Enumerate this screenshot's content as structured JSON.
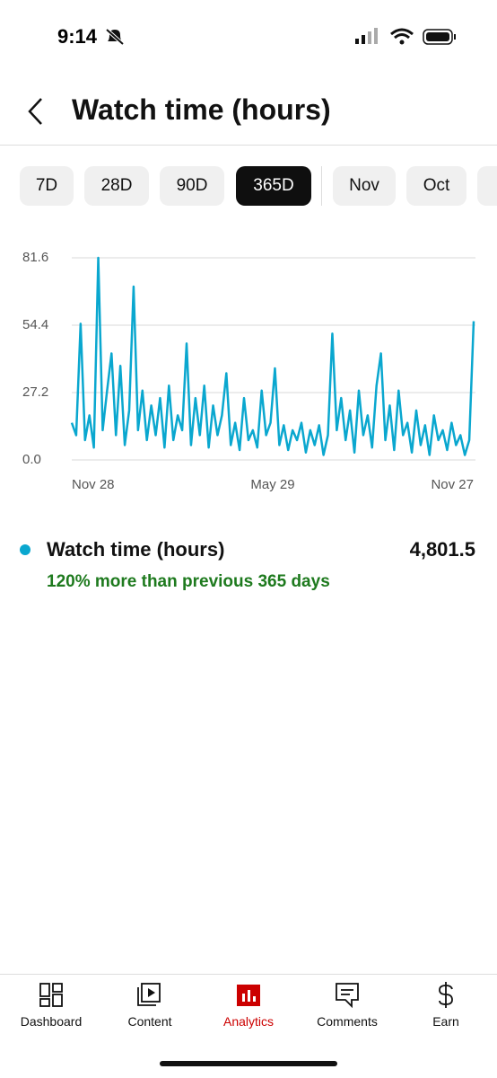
{
  "status_bar": {
    "time": "9:14"
  },
  "header": {
    "title": "Watch time (hours)"
  },
  "tabs": [
    {
      "label": "7D"
    },
    {
      "label": "28D"
    },
    {
      "label": "90D"
    },
    {
      "label": "365D",
      "selected": true
    },
    {
      "label": "Nov"
    },
    {
      "label": "Oct"
    }
  ],
  "chart_data": {
    "type": "line",
    "x": [
      0,
      4,
      8,
      12,
      16,
      20,
      24,
      28,
      32,
      36,
      40,
      44,
      48,
      52,
      56,
      60,
      64,
      68,
      72,
      76,
      80,
      84,
      88,
      92,
      96,
      100,
      104,
      108,
      112,
      116,
      120,
      124,
      128,
      132,
      136,
      140,
      144,
      148,
      152,
      156,
      160,
      164,
      168,
      172,
      176,
      180,
      184,
      188,
      192,
      196,
      200,
      204,
      208,
      212,
      216,
      220,
      224,
      228,
      232,
      236,
      240,
      244,
      248,
      252,
      256,
      260,
      264,
      268,
      272,
      276,
      280,
      284,
      288,
      292,
      296,
      300,
      304,
      308,
      312,
      316,
      320,
      324,
      328,
      332,
      336,
      340,
      344,
      348,
      352,
      356,
      360,
      364
    ],
    "series": [
      {
        "name": "Watch time (hours)",
        "color": "#0aa7cf",
        "values": [
          15,
          10,
          55,
          8,
          18,
          5,
          81.6,
          12,
          28,
          43,
          10,
          38,
          6,
          20,
          70,
          12,
          28,
          8,
          22,
          10,
          25,
          5,
          30,
          8,
          18,
          12,
          47,
          6,
          25,
          10,
          30,
          5,
          22,
          10,
          18,
          35,
          6,
          15,
          4,
          25,
          8,
          12,
          5,
          28,
          10,
          15,
          37,
          6,
          14,
          4,
          12,
          8,
          15,
          3,
          12,
          6,
          14,
          2,
          10,
          51,
          12,
          25,
          8,
          20,
          3,
          28,
          10,
          18,
          5,
          30,
          43,
          8,
          22,
          4,
          28,
          10,
          15,
          3,
          20,
          6,
          14,
          2,
          18,
          8,
          12,
          4,
          15,
          6,
          10,
          2,
          8,
          56
        ]
      }
    ],
    "xlim": [
      0,
      364
    ],
    "xticks": [
      {
        "value": 0,
        "label": "Nov 28"
      },
      {
        "value": 182,
        "label": "May 29"
      },
      {
        "value": 364,
        "label": "Nov 27"
      }
    ],
    "ylim": [
      0,
      81.6
    ],
    "yticks": [
      {
        "value": 0,
        "label": "0.0"
      },
      27.2,
      54.4,
      81.6
    ],
    "grid": true
  },
  "summary": {
    "total": "4,801.5",
    "comparison": "120% more than previous 365 days"
  },
  "nav": [
    {
      "label": "Dashboard"
    },
    {
      "label": "Content"
    },
    {
      "label": "Analytics",
      "active": true
    },
    {
      "label": "Comments"
    },
    {
      "label": "Earn"
    }
  ]
}
